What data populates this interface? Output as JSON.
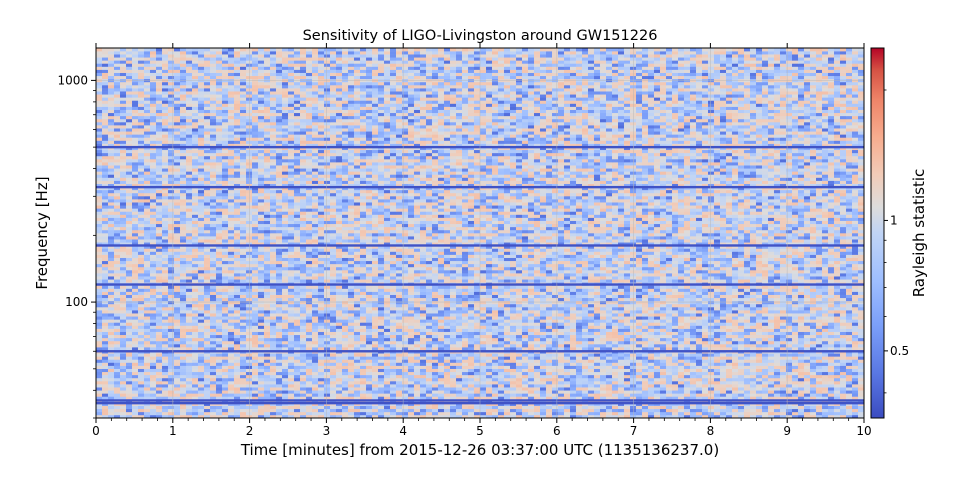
{
  "chart_data": {
    "type": "heatmap",
    "title": "Sensitivity of LIGO-Livingston around GW151226",
    "xlabel": "Time [minutes] from 2015-12-26 03:37:00 UTC (1135136237.0)",
    "ylabel": "Frequency [Hz]",
    "xlim": [
      0,
      10
    ],
    "ylim": [
      30,
      1400
    ],
    "yscale": "log",
    "x_ticks": [
      0,
      1,
      2,
      3,
      4,
      5,
      6,
      7,
      8,
      9,
      10
    ],
    "x_tick_labels": [
      "0",
      "1",
      "2",
      "3",
      "4",
      "5",
      "6",
      "7",
      "8",
      "9",
      "10"
    ],
    "y_ticks": [
      100,
      1000
    ],
    "y_tick_labels": [
      "100",
      "1000"
    ],
    "colormap": "coolwarm",
    "colorbar": {
      "label": "Rayleigh statistic",
      "scale": "log",
      "range": [
        0.35,
        2.5
      ],
      "ticks": [
        0.5,
        1
      ],
      "tick_labels": [
        "0.5",
        "1"
      ]
    },
    "grid": true,
    "values_description": "Rayleigh statistic fluctuates randomly around 1 (mostly 0.5-1.2) across all time-frequency bins",
    "low_value_lines_hz": [
      35,
      36,
      60,
      120,
      180,
      330,
      500
    ]
  },
  "colors": {
    "cmap_low": "#3b4cc0",
    "cmap_mid": "#dddddd",
    "cmap_high": "#b40426"
  }
}
